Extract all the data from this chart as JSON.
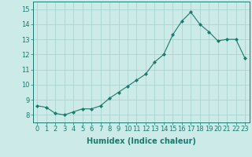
{
  "x": [
    0,
    1,
    2,
    3,
    4,
    5,
    6,
    7,
    8,
    9,
    10,
    11,
    12,
    13,
    14,
    15,
    16,
    17,
    18,
    19,
    20,
    21,
    22,
    23
  ],
  "y": [
    8.6,
    8.5,
    8.1,
    8.0,
    8.2,
    8.4,
    8.4,
    8.6,
    9.1,
    9.5,
    9.9,
    10.3,
    10.7,
    11.5,
    12.0,
    13.3,
    14.2,
    14.8,
    14.0,
    13.5,
    12.9,
    13.0,
    13.0,
    11.75
  ],
  "line_color": "#1a7a6e",
  "marker": "D",
  "marker_size": 2.0,
  "bg_color": "#cceae7",
  "grid_color": "#aad4d0",
  "xlabel": "Humidex (Indice chaleur)",
  "ylim": [
    7.5,
    15.5
  ],
  "xlim": [
    -0.5,
    23.5
  ],
  "yticks": [
    8,
    9,
    10,
    11,
    12,
    13,
    14,
    15
  ],
  "xticks": [
    0,
    1,
    2,
    3,
    4,
    5,
    6,
    7,
    8,
    9,
    10,
    11,
    12,
    13,
    14,
    15,
    16,
    17,
    18,
    19,
    20,
    21,
    22,
    23
  ],
  "tick_color": "#1a7a6e",
  "label_color": "#1a7a6e",
  "xlabel_fontsize": 7,
  "tick_fontsize": 6,
  "linewidth": 0.8
}
